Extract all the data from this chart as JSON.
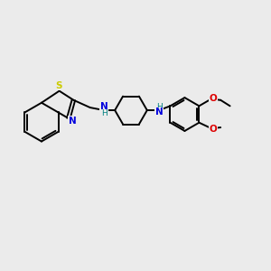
{
  "background_color": "#ebebeb",
  "bond_color": "#000000",
  "bond_width": 1.4,
  "S_color": "#cccc00",
  "N_color": "#0000dd",
  "NH_color": "#008080",
  "O_color": "#dd0000",
  "figsize": [
    3.0,
    3.0
  ],
  "dpi": 100,
  "xlim": [
    0,
    10
  ],
  "ylim": [
    0,
    10
  ]
}
